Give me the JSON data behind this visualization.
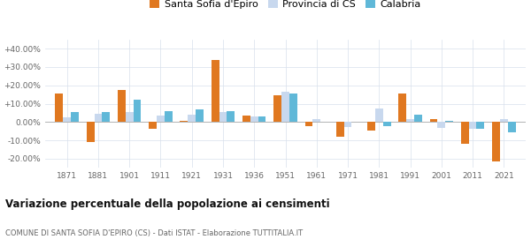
{
  "years": [
    1871,
    1881,
    1901,
    1911,
    1921,
    1931,
    1936,
    1951,
    1961,
    1971,
    1981,
    1991,
    2001,
    2011,
    2021
  ],
  "santa_sofia": [
    15.5,
    -11.0,
    17.5,
    -3.5,
    0.5,
    34.0,
    3.5,
    14.5,
    -2.0,
    -8.0,
    -4.5,
    15.5,
    1.5,
    -12.0,
    -21.5
  ],
  "provincia_cs": [
    2.5,
    4.5,
    5.5,
    3.5,
    4.0,
    5.5,
    3.0,
    16.5,
    1.5,
    -2.5,
    7.5,
    1.5,
    -3.0,
    -3.5,
    1.5
  ],
  "calabria": [
    5.5,
    5.5,
    12.0,
    6.0,
    7.0,
    6.0,
    3.0,
    15.5,
    0.0,
    0.0,
    -2.0,
    4.0,
    0.5,
    -3.5,
    -5.5
  ],
  "color_santa": "#e07820",
  "color_provincia": "#c8d8ee",
  "color_calabria": "#60b8d8",
  "ylim": [
    -25,
    45
  ],
  "yticks": [
    -20,
    -10,
    0,
    10,
    20,
    30,
    40
  ],
  "ytick_labels": [
    "-20.00%",
    "-10.00%",
    "0.00%",
    "+10.00%",
    "+20.00%",
    "+30.00%",
    "+40.00%"
  ],
  "title": "Variazione percentuale della popolazione ai censimenti",
  "subtitle": "COMUNE DI SANTA SOFIA D'EPIRO (CS) - Dati ISTAT - Elaborazione TUTTITALIA.IT",
  "legend_labels": [
    "Santa Sofia d'Epiro",
    "Provincia di CS",
    "Calabria"
  ],
  "bar_width": 0.25,
  "background_color": "#ffffff",
  "grid_color": "#d8e0ec"
}
